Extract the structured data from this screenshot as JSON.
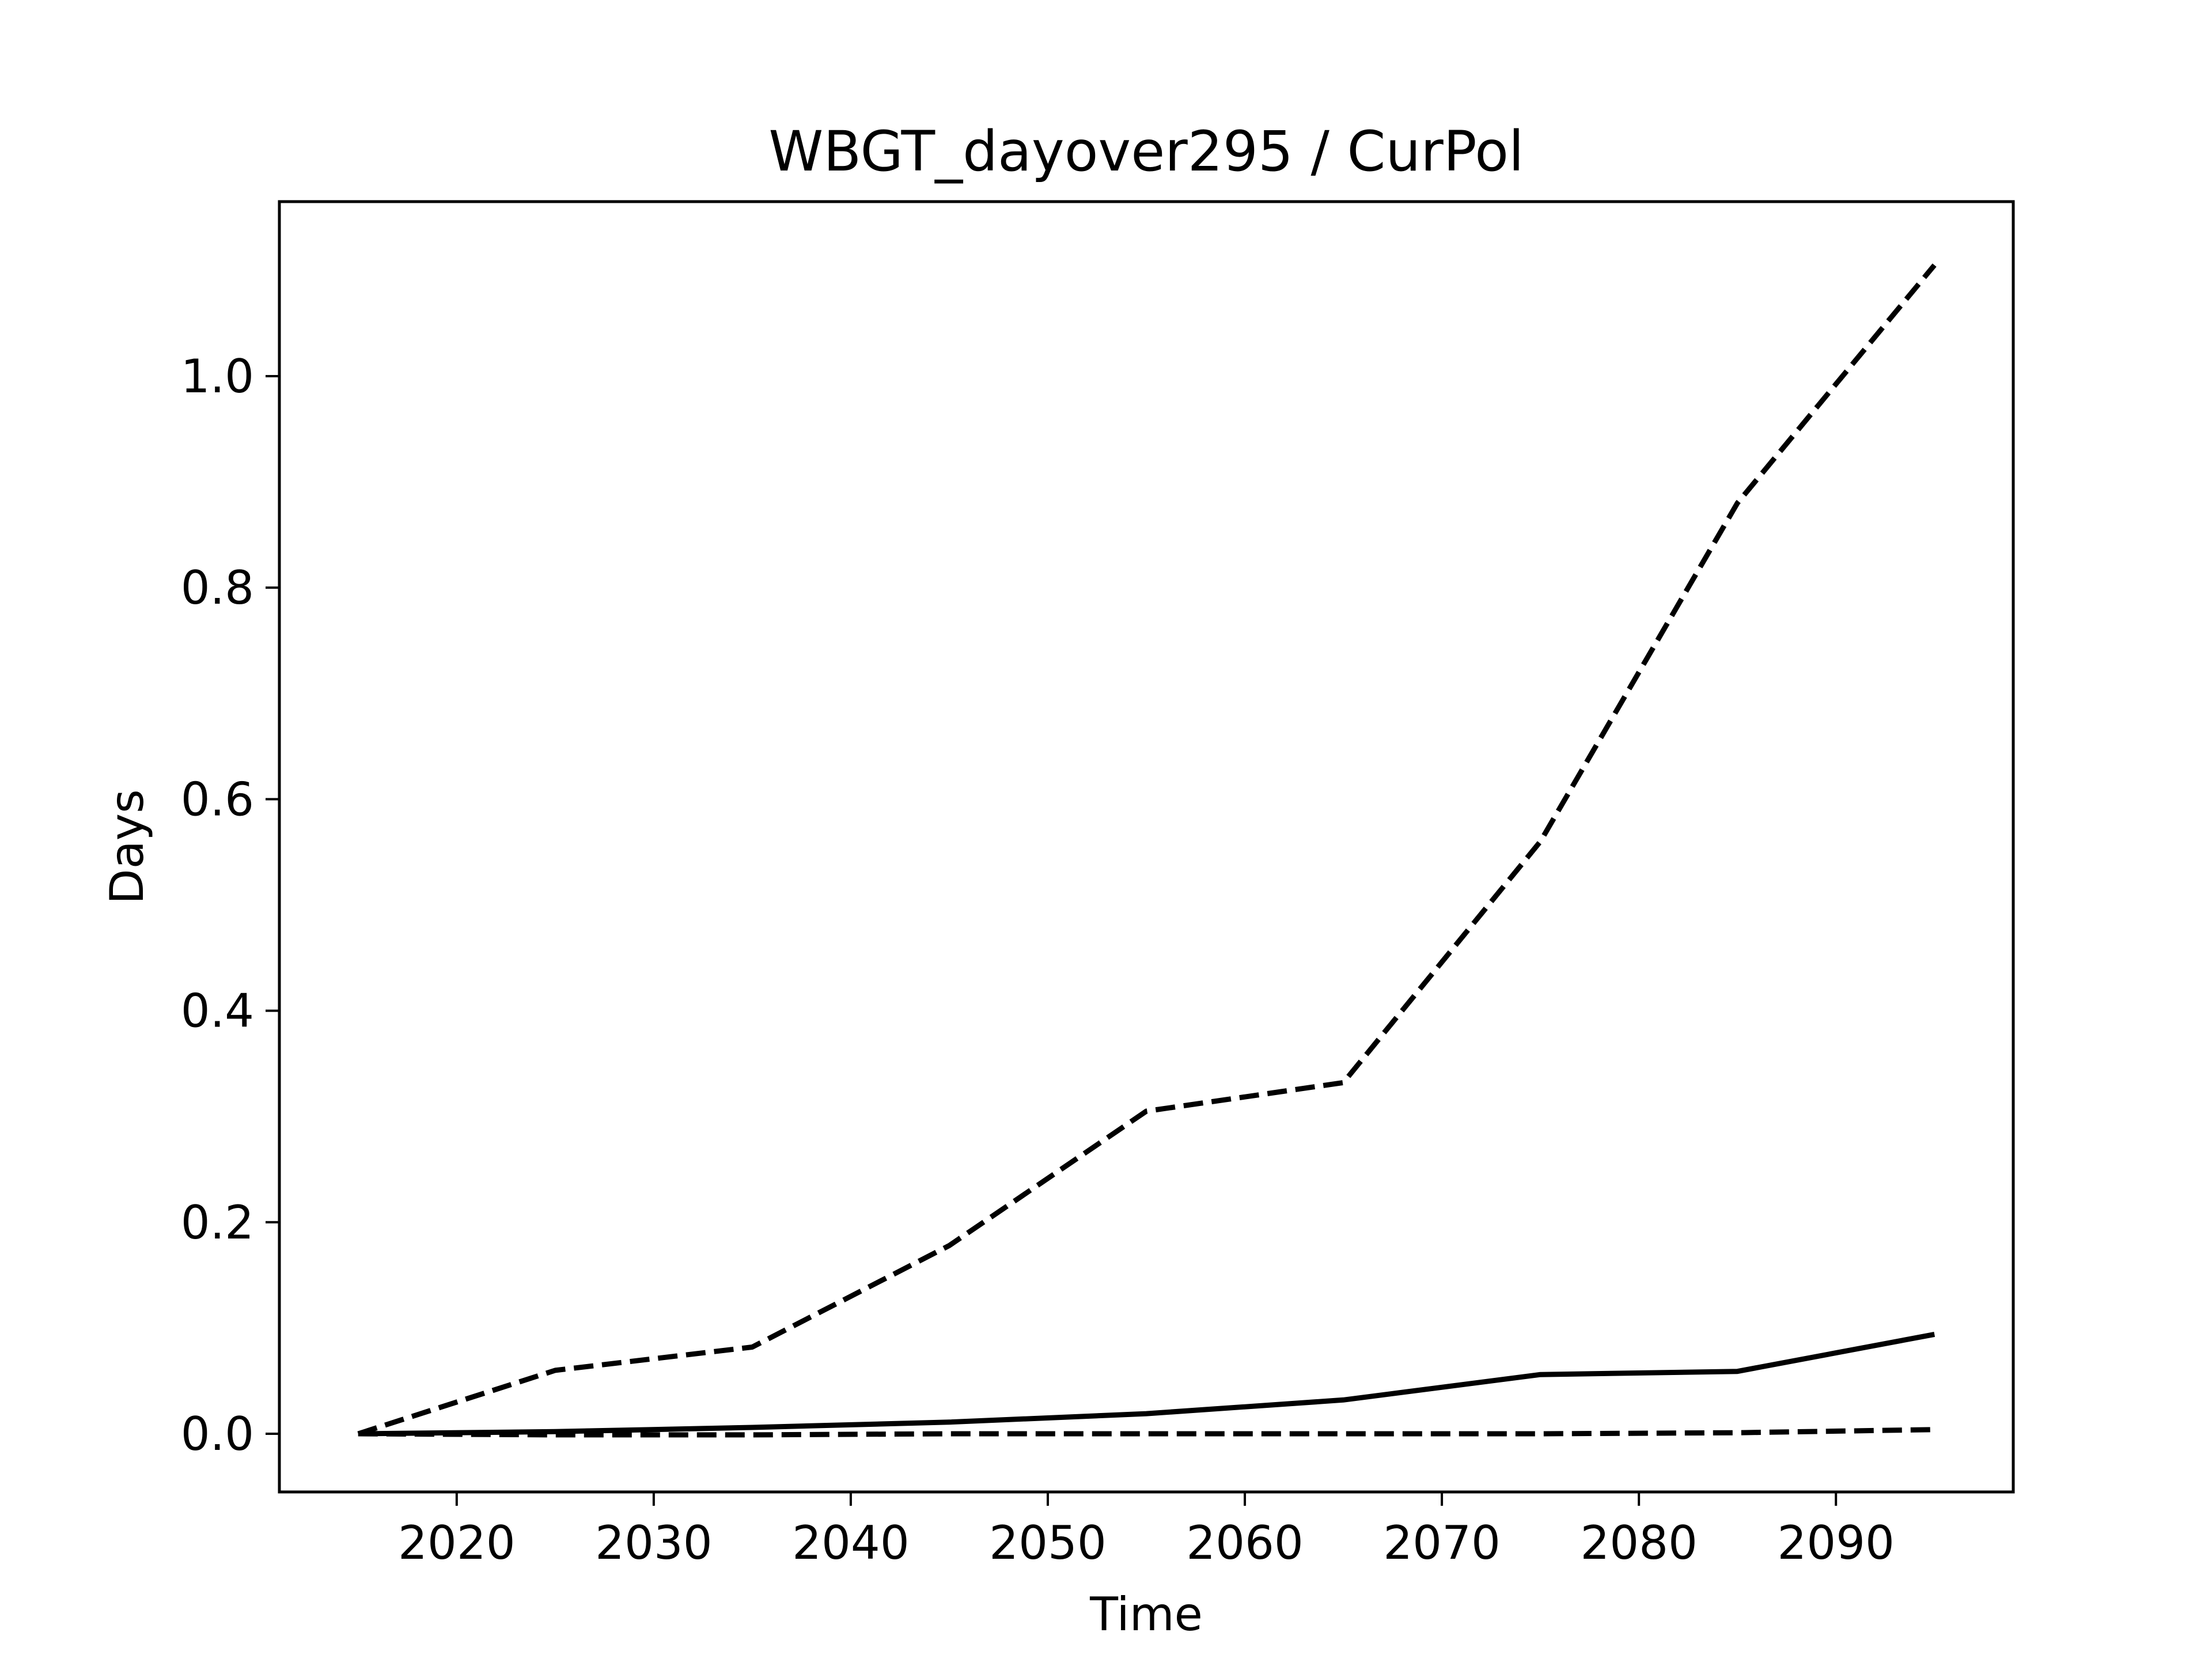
{
  "chart_data": {
    "type": "line",
    "title": "WBGT_dayover295 / CurPol",
    "xlabel": "Time",
    "ylabel": "Days",
    "xlim": [
      2011,
      2099
    ],
    "ylim": [
      -0.055,
      1.165
    ],
    "xticks": [
      2020,
      2030,
      2040,
      2050,
      2060,
      2070,
      2080,
      2090
    ],
    "yticks": [
      0.0,
      0.2,
      0.4,
      0.6,
      0.8,
      1.0
    ],
    "ytick_labels": [
      "0.0",
      "0.2",
      "0.4",
      "0.6",
      "0.8",
      "1.0"
    ],
    "grid": false,
    "x": [
      2015,
      2025,
      2035,
      2045,
      2055,
      2065,
      2075,
      2085,
      2095
    ],
    "series": [
      {
        "style": "dashed",
        "color": "#000000",
        "values": [
          0.0,
          0.06,
          0.082,
          0.178,
          0.305,
          0.332,
          0.56,
          0.88,
          1.105
        ]
      },
      {
        "style": "solid",
        "color": "#000000",
        "values": [
          0.0,
          0.002,
          0.006,
          0.011,
          0.019,
          0.032,
          0.056,
          0.059,
          0.094
        ]
      },
      {
        "style": "dashed",
        "color": "#000000",
        "values": [
          0.0,
          -0.001,
          -0.001,
          0.0,
          0.0,
          0.0,
          0.0,
          0.001,
          0.004
        ]
      }
    ]
  }
}
